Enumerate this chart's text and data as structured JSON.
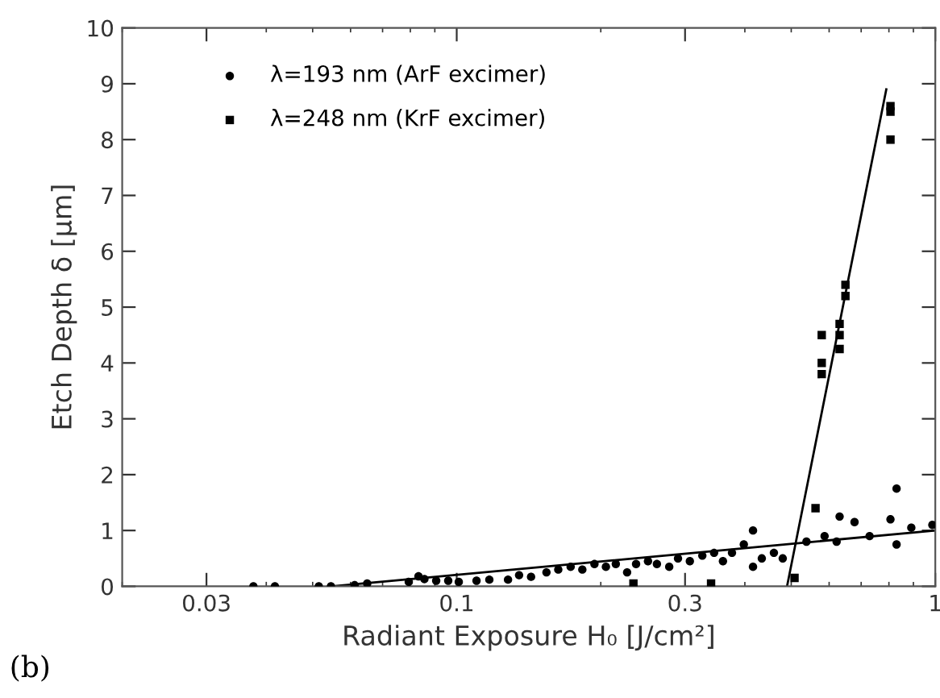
{
  "chart_data": {
    "type": "scatter",
    "xlabel": "Radiant Exposure H₀ [J/cm²]",
    "ylabel": "Etch Depth δ [μm]",
    "annotations": [
      "(b)"
    ],
    "log": "x",
    "xlim": [
      0.02,
      1
    ],
    "xticks": [
      0.03,
      0.1,
      0.3,
      1
    ],
    "ylim": [
      0,
      10
    ],
    "yticks": [
      0,
      1,
      2,
      3,
      4,
      5,
      6,
      7,
      8,
      9,
      10
    ],
    "grid": false,
    "legend": "top left",
    "series": [
      {
        "name": "λ=193 nm (ArF excimer)",
        "color": "#000000",
        "marker": "circle",
        "x": [
          0.0376,
          0.0417,
          0.0515,
          0.0546,
          0.0612,
          0.065,
          0.0794,
          0.0832,
          0.0856,
          0.0906,
          0.096,
          0.101,
          0.11,
          0.117,
          0.128,
          0.135,
          0.143,
          0.154,
          0.163,
          0.173,
          0.183,
          0.194,
          0.205,
          0.215,
          0.227,
          0.237,
          0.251,
          0.262,
          0.278,
          0.29,
          0.307,
          0.326,
          0.345,
          0.36,
          0.376,
          0.398,
          0.416,
          0.416,
          0.434,
          0.46,
          0.48,
          0.538,
          0.587,
          0.631,
          0.622,
          0.678,
          0.729,
          0.806,
          0.83,
          0.83,
          0.891,
          0.986
        ],
        "values": [
          0,
          0,
          0,
          0,
          0.02,
          0.05,
          0.08,
          0.18,
          0.13,
          0.1,
          0.1,
          0.08,
          0.1,
          0.12,
          0.12,
          0.2,
          0.17,
          0.25,
          0.3,
          0.35,
          0.3,
          0.4,
          0.35,
          0.4,
          0.25,
          0.4,
          0.45,
          0.4,
          0.35,
          0.5,
          0.45,
          0.55,
          0.6,
          0.45,
          0.6,
          0.75,
          1.0,
          0.35,
          0.5,
          0.6,
          0.5,
          0.8,
          0.9,
          1.25,
          0.8,
          1.15,
          0.9,
          1.2,
          0.75,
          1.75,
          1.05,
          1.1
        ]
      },
      {
        "name": "λ=248 nm (KrF excimer)",
        "color": "#000000",
        "marker": "square",
        "x": [
          0.234,
          0.34,
          0.508,
          0.562,
          0.579,
          0.579,
          0.579,
          0.631,
          0.631,
          0.631,
          0.649,
          0.649,
          0.806,
          0.806,
          0.806
        ],
        "values": [
          0.05,
          0.05,
          0.15,
          1.4,
          4.5,
          4.0,
          3.8,
          4.7,
          4.5,
          4.25,
          5.4,
          5.2,
          8.6,
          8.5,
          8.0
        ]
      },
      {
        "type": "line",
        "color": "#000000",
        "marker": "none",
        "line_style": "solid",
        "x": [
          0.055,
          1.0
        ],
        "values": [
          0,
          1.0
        ]
      },
      {
        "type": "line",
        "color": "#000000",
        "marker": "none",
        "line_style": "solid",
        "x": [
          0.49,
          0.79
        ],
        "values": [
          0,
          8.9
        ]
      }
    ]
  }
}
